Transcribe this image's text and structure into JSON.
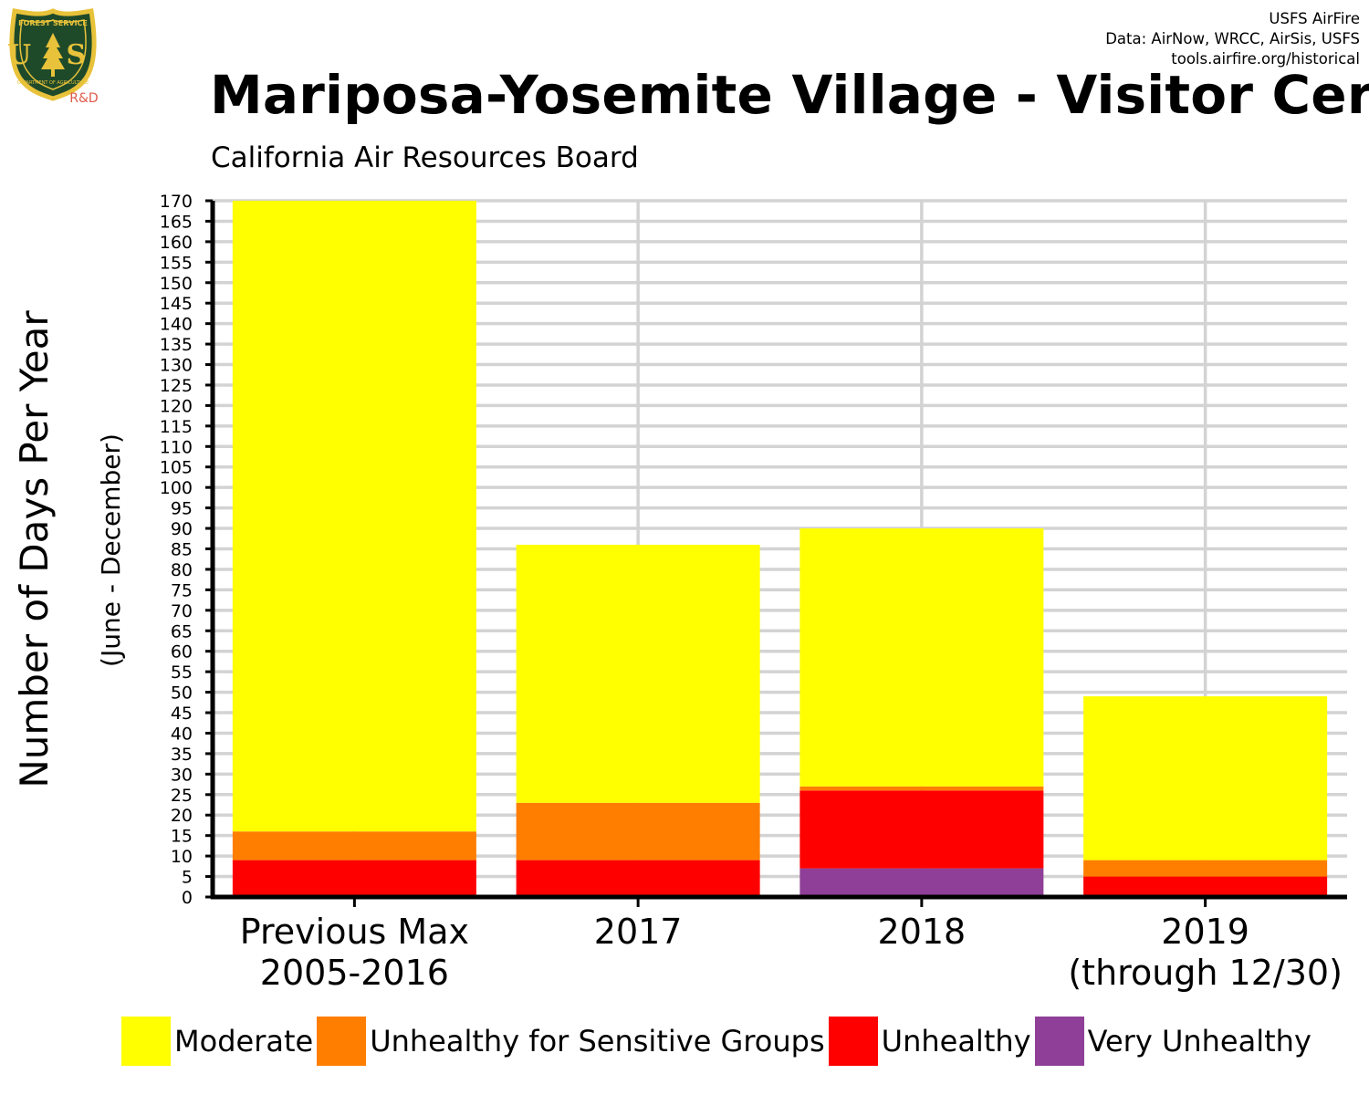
{
  "header": {
    "credits": [
      "USFS AirFire",
      "Data: AirNow, WRCC, AirSis, USFS",
      "tools.airfire.org/historical"
    ],
    "logo": {
      "name": "forest-service-shield-logo",
      "text_top": "FOREST SERVICE",
      "text_mid": "U S",
      "text_bottom": "DEPARTMENT OF AGRICULTURE",
      "tag": "R&D",
      "colors": {
        "shield": "#1f4a2a",
        "border": "#e8c23a",
        "tag": "#e05a4a"
      }
    }
  },
  "chart_data": {
    "type": "bar",
    "stacked": true,
    "title": "Mariposa-Yosemite Village - Visitor Cer",
    "subtitle": "California Air Resources Board",
    "ylabel": "Number of Days Per Year",
    "ylabel2": "(June - December)",
    "xlabel": "",
    "ylim": [
      0,
      170
    ],
    "ytick_step": 5,
    "grid": true,
    "legend_placement": "bottom",
    "categories": [
      [
        "Previous Max",
        "2005-2016"
      ],
      [
        "2017"
      ],
      [
        "2018"
      ],
      [
        "2019",
        "(through 12/30)"
      ]
    ],
    "series": [
      {
        "name": "Very Unhealthy",
        "color": "#8f3f97",
        "values": [
          0,
          0,
          7,
          0
        ]
      },
      {
        "name": "Unhealthy",
        "color": "#ff0000",
        "values": [
          9,
          9,
          19,
          5
        ]
      },
      {
        "name": "Unhealthy for Sensitive Groups",
        "color": "#ff7e00",
        "values": [
          7,
          14,
          1,
          4
        ]
      },
      {
        "name": "Moderate",
        "color": "#ffff00",
        "values": [
          154,
          63,
          63,
          40
        ]
      }
    ],
    "legend_order": [
      "Moderate",
      "Unhealthy for Sensitive Groups",
      "Unhealthy",
      "Very Unhealthy"
    ]
  }
}
